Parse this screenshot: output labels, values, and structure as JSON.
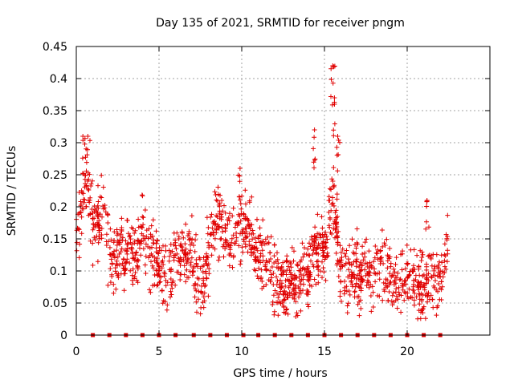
{
  "chart_data": {
    "type": "scatter",
    "title": "Day 135 of 2021, SRMTID for receiver pngm",
    "xlabel": "GPS time / hours",
    "ylabel": "SRMTID / TECUs",
    "xlim": [
      0,
      25
    ],
    "ylim": [
      0,
      0.45
    ],
    "x_ticks": [
      0,
      5,
      10,
      15,
      20
    ],
    "x_tick_labels": [
      "0",
      "5",
      "10",
      "15",
      "20"
    ],
    "y_ticks": [
      0,
      0.05,
      0.1,
      0.15,
      0.2,
      0.25,
      0.3,
      0.35,
      0.4,
      0.45
    ],
    "y_tick_labels": [
      "0",
      "0.05",
      "0.1",
      "0.15",
      "0.2",
      "0.25",
      "0.3",
      "0.35",
      "0.4",
      "0.45"
    ],
    "grid": true,
    "marker": "plus",
    "color": "#e00000",
    "series_profile": {
      "name": "SRMTID",
      "description_points": [
        [
          0.0,
          0.15
        ],
        [
          0.3,
          0.2
        ],
        [
          0.5,
          0.25
        ],
        [
          0.7,
          0.23
        ],
        [
          1.0,
          0.17
        ],
        [
          1.5,
          0.19
        ],
        [
          2.0,
          0.13
        ],
        [
          2.5,
          0.12
        ],
        [
          3.0,
          0.13
        ],
        [
          3.5,
          0.11
        ],
        [
          4.0,
          0.16
        ],
        [
          4.5,
          0.13
        ],
        [
          5.0,
          0.11
        ],
        [
          5.5,
          0.09
        ],
        [
          6.0,
          0.13
        ],
        [
          6.5,
          0.12
        ],
        [
          7.0,
          0.12
        ],
        [
          7.5,
          0.08
        ],
        [
          8.0,
          0.13
        ],
        [
          8.5,
          0.19
        ],
        [
          9.0,
          0.15
        ],
        [
          9.5,
          0.14
        ],
        [
          10.0,
          0.17
        ],
        [
          10.5,
          0.16
        ],
        [
          11.0,
          0.13
        ],
        [
          11.5,
          0.11
        ],
        [
          12.0,
          0.09
        ],
        [
          12.5,
          0.07
        ],
        [
          13.0,
          0.08
        ],
        [
          13.5,
          0.09
        ],
        [
          14.0,
          0.09
        ],
        [
          14.5,
          0.13
        ],
        [
          15.0,
          0.12
        ],
        [
          15.5,
          0.22
        ],
        [
          15.8,
          0.15
        ],
        [
          16.0,
          0.09
        ],
        [
          16.5,
          0.09
        ],
        [
          17.0,
          0.1
        ],
        [
          17.5,
          0.1
        ],
        [
          18.0,
          0.09
        ],
        [
          18.5,
          0.11
        ],
        [
          19.0,
          0.08
        ],
        [
          19.5,
          0.08
        ],
        [
          20.0,
          0.09
        ],
        [
          20.5,
          0.08
        ],
        [
          21.0,
          0.07
        ],
        [
          21.5,
          0.09
        ],
        [
          22.0,
          0.1
        ],
        [
          22.5,
          0.14
        ]
      ],
      "spread": 0.04
    },
    "peaks": [
      {
        "x": 0.4,
        "y": 0.31
      },
      {
        "x": 0.7,
        "y": 0.31
      },
      {
        "x": 9.9,
        "y": 0.26
      },
      {
        "x": 14.4,
        "y": 0.32
      },
      {
        "x": 15.5,
        "y": 0.42
      },
      {
        "x": 15.6,
        "y": 0.37
      },
      {
        "x": 15.8,
        "y": 0.31
      },
      {
        "x": 21.2,
        "y": 0.21
      }
    ],
    "zero_markers_x": [
      1.0,
      2.0,
      3.0,
      4.0,
      5.0,
      6.0,
      7.1,
      8.1,
      9.1,
      10.1,
      11.0,
      12.0,
      13.0,
      14.0,
      15.0,
      16.0,
      17.0,
      18.0,
      19.0,
      20.0,
      21.0,
      22.0
    ]
  }
}
